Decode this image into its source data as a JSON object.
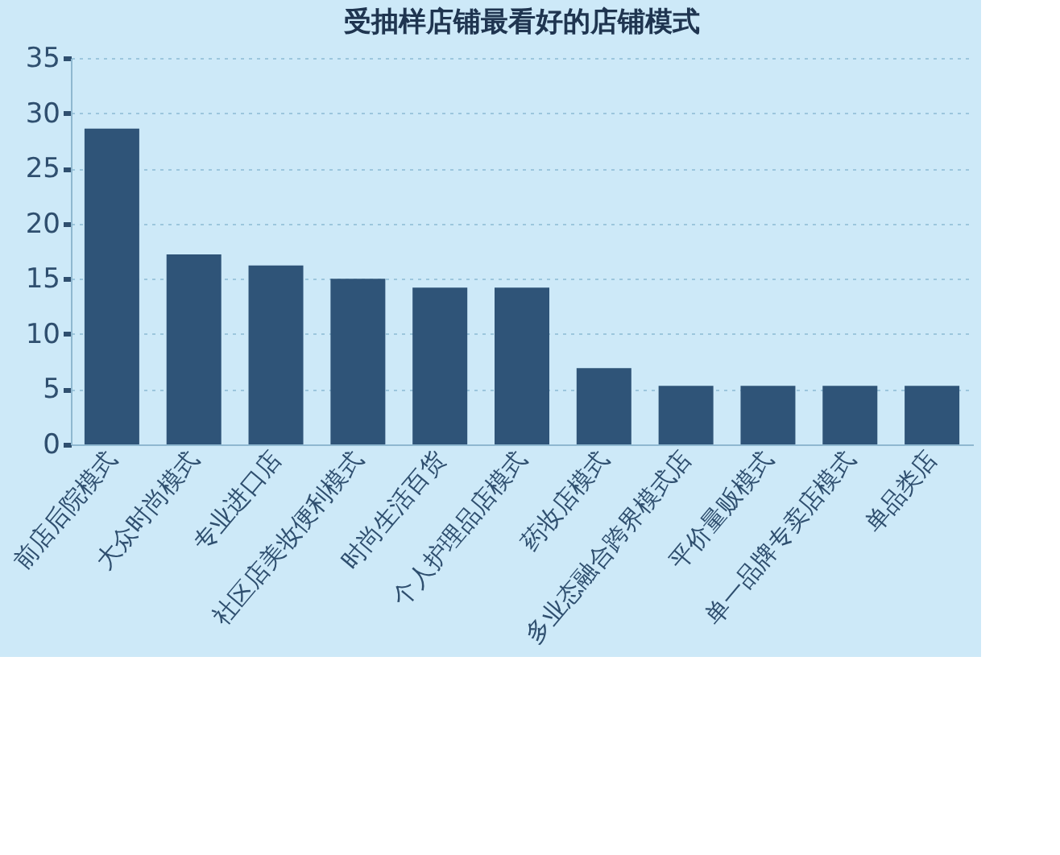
{
  "chart_data": {
    "type": "bar",
    "title": "受抽样店铺最看好的店铺模式",
    "categories": [
      "前店后院模式",
      "大众时尚模式",
      "专业进口店",
      "社区店美妆便利模式",
      "时尚生活百货",
      "个人护理品店模式",
      "药妆店模式",
      "多业态融合跨界模式店",
      "平价量贩模式",
      "单一品牌专卖店模式",
      "单品类店"
    ],
    "values": [
      28.6,
      17.2,
      16.2,
      15.0,
      14.2,
      14.2,
      6.9,
      5.3,
      5.3,
      5.3,
      5.3
    ],
    "color": "#2f5478",
    "ylim": [
      0,
      35
    ],
    "yticks": [
      0,
      5,
      10,
      15,
      20,
      25,
      30,
      35
    ],
    "grid": "y"
  }
}
